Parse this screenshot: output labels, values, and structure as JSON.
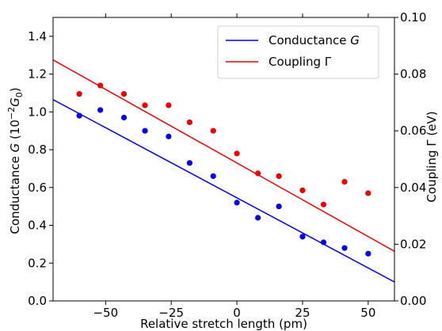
{
  "chart_data": {
    "type": "scatter",
    "x": [
      -60,
      -52,
      -43,
      -35,
      -26,
      -18,
      -9,
      0,
      8,
      16,
      25,
      33,
      41,
      50
    ],
    "xlabel": "Relative stretch length (pm)",
    "xlim": [
      -70,
      60
    ],
    "xticks": [
      -50,
      -25,
      0,
      25,
      50
    ],
    "xtick_labels": [
      "−50",
      "−25",
      "0",
      "25",
      "50"
    ],
    "y_left": {
      "label": "Conductance G  (10^{−2}G_0)",
      "label_parts": {
        "main": "Conductance ",
        "italic_symbol": "G",
        "open": "  (10",
        "sup": "−2",
        "g_symbol": "G",
        "sub": "0",
        "close": ")"
      },
      "ylim": [
        0.0,
        1.5
      ],
      "ticks": [
        0.0,
        0.2,
        0.4,
        0.6,
        0.8,
        1.0,
        1.2,
        1.4
      ],
      "tick_labels": [
        "0.0",
        "0.2",
        "0.4",
        "0.6",
        "0.8",
        "1.0",
        "1.2",
        "1.4"
      ]
    },
    "y_right": {
      "label": "Coupling Γ (eV)",
      "ylim": [
        0.0,
        0.1
      ],
      "ticks": [
        0.0,
        0.02,
        0.04,
        0.06,
        0.08,
        0.1
      ],
      "tick_labels": [
        "0.00",
        "0.02",
        "0.04",
        "0.06",
        "0.08",
        "0.10"
      ]
    },
    "series": [
      {
        "name": "Conductance G",
        "legend_main": "Conductance ",
        "legend_symbol": "G",
        "axis": "left",
        "color": "#0000ee",
        "values": [
          0.98,
          1.01,
          0.97,
          0.9,
          0.87,
          0.73,
          0.66,
          0.52,
          0.44,
          0.5,
          0.34,
          0.31,
          0.28,
          0.25
        ],
        "fit_line": {
          "x": [
            -70,
            60
          ],
          "y": [
            1.065,
            0.1
          ]
        }
      },
      {
        "name": "Coupling Γ",
        "legend_main": "Coupling Γ",
        "legend_symbol": "",
        "axis": "right",
        "color": "#ee0000",
        "values": [
          0.073,
          0.076,
          0.073,
          0.069,
          0.069,
          0.063,
          0.06,
          0.052,
          0.045,
          0.044,
          0.039,
          0.034,
          0.042,
          0.038
        ],
        "fit_line": {
          "x": [
            -70,
            60
          ],
          "y": [
            0.085,
            0.0175
          ]
        }
      }
    ],
    "legend_position": "top-right",
    "grid": false
  }
}
